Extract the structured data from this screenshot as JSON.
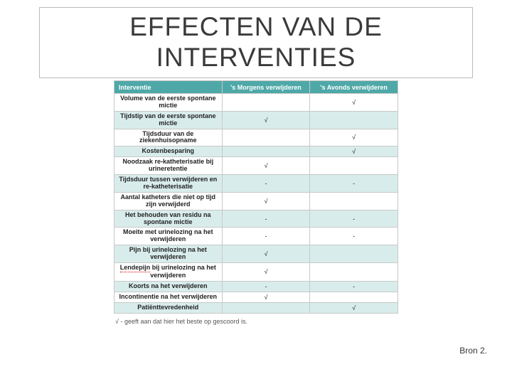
{
  "title": "EFFECTEN VAN DE INTERVENTIES",
  "source_label": "Bron 2.",
  "table": {
    "header_bg": "#4fa8a8",
    "header_fg": "#ffffff",
    "shade_bg": "#d9ecec",
    "border_color": "#c8c8c8",
    "columns": [
      "Interventie",
      "'s Morgens verwijderen",
      "'s Avonds verwijderen"
    ],
    "rows": [
      {
        "label": "Volume van de eerste spontane mictie",
        "morning": "",
        "evening": "√",
        "shaded": false,
        "squiggle": false
      },
      {
        "label": "Tijdstip van de eerste spontane mictie",
        "morning": "√",
        "evening": "",
        "shaded": true,
        "squiggle": false
      },
      {
        "label": "Tijdsduur van de ziekenhuisopname",
        "morning": "",
        "evening": "√",
        "shaded": false,
        "squiggle": false
      },
      {
        "label": "Kostenbesparing",
        "morning": "",
        "evening": "√",
        "shaded": true,
        "squiggle": false
      },
      {
        "label": "Noodzaak re-katheterisatie bij urineretentie",
        "morning": "√",
        "evening": "",
        "shaded": false,
        "squiggle": false
      },
      {
        "label": "Tijdsduur tussen verwijderen en re-katheterisatie",
        "morning": "-",
        "evening": "-",
        "shaded": true,
        "squiggle": false
      },
      {
        "label": "Aantal katheters die niet op tijd zijn verwijderd",
        "morning": "√",
        "evening": "",
        "shaded": false,
        "squiggle": false
      },
      {
        "label": "Het behouden van residu na spontane mictie",
        "morning": "-",
        "evening": "-",
        "shaded": true,
        "squiggle": false
      },
      {
        "label": "Moeite met urinelozing na het verwijderen",
        "morning": "-",
        "evening": "-",
        "shaded": false,
        "squiggle": false
      },
      {
        "label": "Pijn bij urinelozing na het verwijderen",
        "morning": "√",
        "evening": "",
        "shaded": true,
        "squiggle": false
      },
      {
        "label": "Lendepijn bij urinelozing na het verwijderen",
        "morning": "√",
        "evening": "",
        "shaded": false,
        "squiggle": true
      },
      {
        "label": "Koorts na het verwijderen",
        "morning": "-",
        "evening": "-",
        "shaded": true,
        "squiggle": false
      },
      {
        "label": "Incontinentie na het verwijderen",
        "morning": "√",
        "evening": "",
        "shaded": false,
        "squiggle": false
      },
      {
        "label": "Patiënttevredenheid",
        "morning": "",
        "evening": "√",
        "shaded": true,
        "squiggle": false
      }
    ],
    "footnote": "√ - geeft aan dat hier het beste op gescoord is."
  }
}
